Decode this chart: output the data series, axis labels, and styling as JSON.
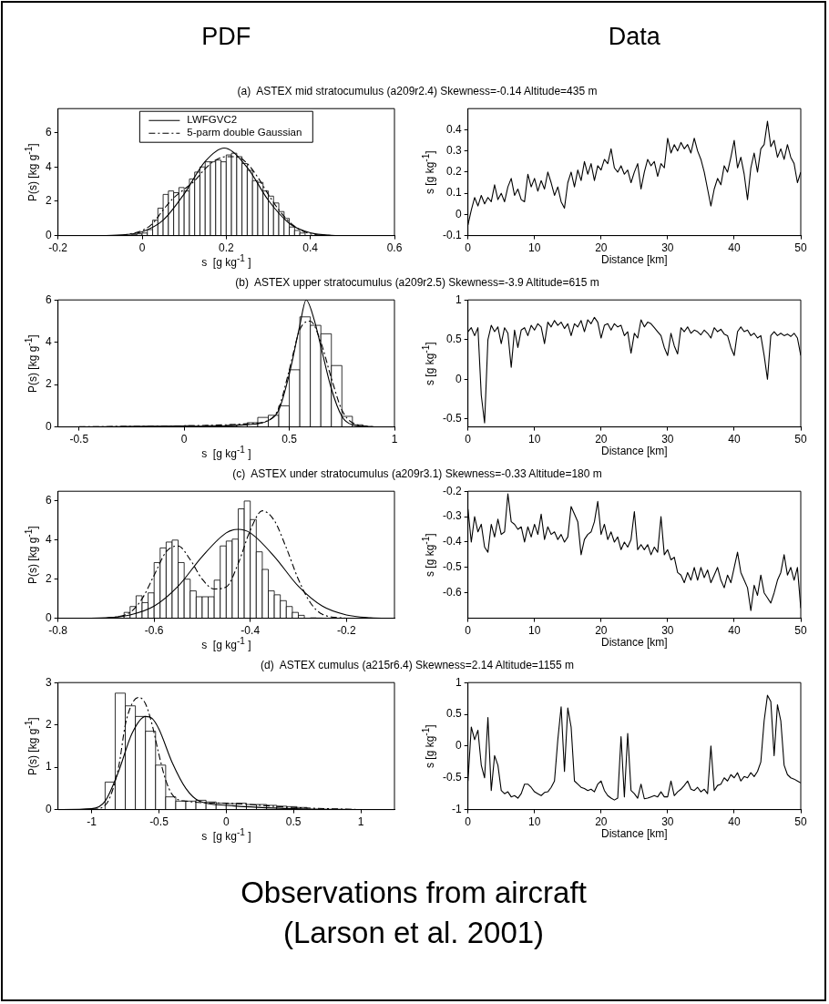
{
  "chart_data": [
    {
      "type": "histogram",
      "title": "PDF",
      "subtitle": "(a)  ASTEX mid stratocumulus (a209r2.4) Skewness=-0.14 Altitude=435 m",
      "xlabel": "s  [g kg$^{-1}$ ]",
      "ylabel": "P(s) [kg g$^{-1}$]",
      "color": "#ffffff",
      "bins": [
        -0.025,
        -0.0125,
        0,
        0.0125,
        0.025,
        0.0375,
        0.05,
        0.0625,
        0.075,
        0.0875,
        0.1,
        0.1125,
        0.125,
        0.1375,
        0.15,
        0.1625,
        0.175,
        0.1875,
        0.2,
        0.2125,
        0.225,
        0.2375,
        0.25,
        0.2625,
        0.275,
        0.2875,
        0.3,
        0.3125,
        0.325,
        0.3375,
        0.35,
        0.3625,
        0.375,
        0.3875
      ],
      "values": [
        0.05,
        0.1,
        0.15,
        0.35,
        0.9,
        1.6,
        2.4,
        2.6,
        2.5,
        2.8,
        2.6,
        3.3,
        3.7,
        4.0,
        4.3,
        4.3,
        4.4,
        4.3,
        4.7,
        4.8,
        4.6,
        4.2,
        3.8,
        3.2,
        3.1,
        2.6,
        2.3,
        1.9,
        1.4,
        1.0,
        0.5,
        0.3,
        0.15
      ],
      "series": [
        {
          "name": "LWFGVC2",
          "type": "line",
          "color": "#000000",
          "line_style": "solid",
          "x": [
            -0.2,
            -0.1,
            -0.05,
            0,
            0.05,
            0.1,
            0.15,
            0.195,
            0.25,
            0.3,
            0.35,
            0.4,
            0.45,
            0.5,
            0.6
          ],
          "values": [
            0,
            0,
            0.04,
            0.22,
            0.9,
            2.43,
            4.32,
            5.1,
            3.97,
            2.06,
            0.71,
            0.16,
            0.02,
            0,
            0
          ]
        },
        {
          "name": "5-parm double Gaussian",
          "type": "line",
          "color": "#000000",
          "line_style": "dashed",
          "x": [
            -0.05,
            0,
            0.025,
            0.05,
            0.075,
            0.1,
            0.125,
            0.15,
            0.175,
            0.2,
            0.225,
            0.25,
            0.275,
            0.3,
            0.325,
            0.35,
            0.375,
            0.4,
            0.45
          ],
          "values": [
            0,
            0.3,
            0.7,
            1.5,
            2.2,
            2.7,
            3.2,
            3.9,
            4.4,
            4.6,
            4.6,
            4.2,
            3.4,
            2.4,
            1.5,
            0.8,
            0.35,
            0.1,
            0
          ]
        }
      ],
      "xlim": [
        -0.2,
        0.6
      ],
      "xticks": [
        -0.2,
        0,
        0.2,
        0.4,
        0.6
      ],
      "ylim": [
        0,
        7.4
      ],
      "yticks": [
        0,
        2,
        4,
        6
      ],
      "legend": "top"
    },
    {
      "type": "line",
      "title": "Data",
      "xlabel": "Distance [km]",
      "ylabel": "s [g kg$^{-1}$]",
      "color": "#000000",
      "x": [
        0,
        0.5,
        1,
        1.5,
        2,
        2.5,
        3,
        3.5,
        4,
        4.5,
        5,
        5.5,
        6,
        6.5,
        7,
        7.5,
        8,
        8.5,
        9,
        9.5,
        10,
        10.5,
        11,
        11.5,
        12,
        12.5,
        13,
        13.5,
        14,
        14.5,
        15,
        15.5,
        16,
        16.5,
        17,
        17.5,
        18,
        18.5,
        19,
        19.5,
        20,
        20.5,
        21,
        21.5,
        22,
        22.5,
        23,
        23.5,
        24,
        24.5,
        25,
        25.5,
        26,
        26.5,
        27,
        27.5,
        28,
        28.5,
        29,
        29.5,
        30,
        30.5,
        31,
        31.5,
        32,
        32.5,
        33,
        33.5,
        34,
        34.5,
        35,
        35.5,
        36,
        36.5,
        37,
        37.5,
        38,
        38.5,
        39,
        39.5,
        40,
        40.5,
        41,
        41.5,
        42,
        42.5,
        43,
        43.5,
        44,
        44.5,
        45,
        45.5,
        46,
        46.5,
        47,
        47.5,
        48,
        48.5,
        49,
        49.5,
        50
      ],
      "values": [
        -0.05,
        0.02,
        0.08,
        0.04,
        0.09,
        0.05,
        0.08,
        0.06,
        0.14,
        0.07,
        0.1,
        0.06,
        0.13,
        0.17,
        0.09,
        0.12,
        0.07,
        0.06,
        0.19,
        0.13,
        0.17,
        0.11,
        0.16,
        0.12,
        0.2,
        0.15,
        0.09,
        0.13,
        0.06,
        0.03,
        0.15,
        0.2,
        0.13,
        0.21,
        0.16,
        0.25,
        0.19,
        0.24,
        0.16,
        0.23,
        0.21,
        0.26,
        0.24,
        0.31,
        0.22,
        0.2,
        0.23,
        0.19,
        0.21,
        0.15,
        0.2,
        0.24,
        0.12,
        0.2,
        0.26,
        0.23,
        0.25,
        0.18,
        0.24,
        0.22,
        0.36,
        0.29,
        0.33,
        0.3,
        0.34,
        0.31,
        0.33,
        0.29,
        0.36,
        0.3,
        0.26,
        0.2,
        0.12,
        0.04,
        0.12,
        0.17,
        0.14,
        0.23,
        0.2,
        0.27,
        0.35,
        0.22,
        0.27,
        0.19,
        0.07,
        0.22,
        0.29,
        0.2,
        0.31,
        0.33,
        0.44,
        0.32,
        0.35,
        0.27,
        0.31,
        0.26,
        0.33,
        0.27,
        0.24,
        0.15,
        0.2
      ],
      "xlim": [
        0,
        50
      ],
      "xticks": [
        0,
        10,
        20,
        30,
        40,
        50
      ],
      "ylim": [
        -0.1,
        0.5
      ],
      "yticks": [
        -0.1,
        0,
        0.1,
        0.2,
        0.3,
        0.4
      ]
    },
    {
      "type": "histogram",
      "subtitle": "(b)  ASTEX upper stratocumulus (a209r2.5) Skewness=-3.9 Altitude=615 m",
      "xlabel": "s  [g kg$^{-1}$ ]",
      "ylabel": "P(s) [kg g$^{-1}$]",
      "color": "#ffffff",
      "bins": [
        -0.3,
        -0.25,
        -0.2,
        -0.15,
        -0.1,
        -0.05,
        0,
        0.05,
        0.1,
        0.15,
        0.2,
        0.25,
        0.3,
        0.35,
        0.4,
        0.45,
        0.5,
        0.55,
        0.6,
        0.65,
        0.7,
        0.75,
        0.8,
        0.85,
        0.9
      ],
      "values": [
        0.02,
        0.02,
        0.03,
        0.03,
        0.04,
        0.05,
        0.06,
        null,
        0.06,
        0.05,
        0.08,
        0.1,
        0.2,
        0.45,
        0.55,
        1.0,
        2.7,
        5.2,
        4.8,
        4.4,
        2.9,
        0.5,
        0.1,
        0.02
      ],
      "series": [
        {
          "type": "line",
          "color": "#000000",
          "line_style": "solid",
          "x": [
            -0.5,
            0,
            0.2,
            0.3,
            0.4,
            0.45,
            0.5,
            0.55,
            0.58,
            0.62,
            0.65,
            0.7,
            0.75,
            0.8,
            0.9
          ],
          "values": [
            0,
            0.03,
            0.05,
            0.1,
            0.3,
            0.8,
            2.5,
            4.8,
            6.0,
            5.0,
            3.8,
            1.8,
            0.5,
            0.1,
            0
          ]
        },
        {
          "type": "line",
          "color": "#000000",
          "line_style": "dashed",
          "x": [
            -0.5,
            0,
            0.3,
            0.4,
            0.45,
            0.5,
            0.55,
            0.6,
            0.65,
            0.7,
            0.75,
            0.8,
            0.9
          ],
          "values": [
            0.01,
            0.05,
            0.15,
            0.3,
            0.9,
            2.7,
            4.6,
            5.0,
            4.0,
            2.3,
            0.8,
            0.2,
            0
          ]
        }
      ],
      "xlim": [
        -0.6,
        1
      ],
      "xticks": [
        -0.5,
        0,
        0.5,
        1
      ],
      "ylim": [
        0,
        6
      ],
      "yticks": [
        0,
        2,
        4,
        6
      ]
    },
    {
      "type": "line",
      "xlabel": "Distance [km]",
      "ylabel": "s [g kg$^{-1}$]",
      "color": "#000000",
      "x": [
        0,
        0.5,
        1,
        1.5,
        2,
        2.5,
        3,
        3.5,
        4,
        4.5,
        5,
        5.5,
        6,
        6.5,
        7,
        7.5,
        8,
        8.5,
        9,
        9.5,
        10,
        10.5,
        11,
        11.5,
        12,
        12.5,
        13,
        13.5,
        14,
        14.5,
        15,
        15.5,
        16,
        16.5,
        17,
        17.5,
        18,
        18.5,
        19,
        19.5,
        20,
        20.5,
        21,
        21.5,
        22,
        22.5,
        23,
        23.5,
        24,
        24.5,
        25,
        25.5,
        26,
        26.5,
        27,
        27.5,
        28,
        28.5,
        29,
        29.5,
        30,
        30.5,
        31,
        31.5,
        32,
        32.5,
        33,
        33.5,
        34,
        34.5,
        35,
        35.5,
        36,
        36.5,
        37,
        37.5,
        38,
        38.5,
        39,
        39.5,
        40,
        40.5,
        41,
        41.5,
        42,
        42.5,
        43,
        43.5,
        44,
        44.5,
        45,
        45.5,
        46,
        46.5,
        47,
        47.5,
        48,
        48.5,
        49,
        49.5,
        50
      ],
      "values": [
        0.6,
        0.65,
        0.55,
        0.65,
        -0.2,
        -0.55,
        0.5,
        0.68,
        0.6,
        0.66,
        0.45,
        0.65,
        0.58,
        0.15,
        0.62,
        0.4,
        0.62,
        0.65,
        0.55,
        0.68,
        0.62,
        0.7,
        0.66,
        0.45,
        0.72,
        0.66,
        0.74,
        0.68,
        0.72,
        0.64,
        0.7,
        0.55,
        0.7,
        0.66,
        0.74,
        0.6,
        0.75,
        0.7,
        0.78,
        0.72,
        0.52,
        0.68,
        0.7,
        0.62,
        0.7,
        0.66,
        0.68,
        0.55,
        0.6,
        0.33,
        0.58,
        0.52,
        0.75,
        0.66,
        0.72,
        0.7,
        0.65,
        0.6,
        0.55,
        0.4,
        0.3,
        0.58,
        0.42,
        0.32,
        0.65,
        0.6,
        0.66,
        0.58,
        0.62,
        0.6,
        0.56,
        0.62,
        0.58,
        0.52,
        0.65,
        0.6,
        0.63,
        0.57,
        0.55,
        0.4,
        0.3,
        0.6,
        0.66,
        0.6,
        0.62,
        0.55,
        0.58,
        0.52,
        0.55,
        0.3,
        0.0,
        0.55,
        0.6,
        0.55,
        0.58,
        0.55,
        0.57,
        0.54,
        0.58,
        0.52,
        0.3
      ],
      "xlim": [
        0,
        50
      ],
      "xticks": [
        0,
        10,
        20,
        30,
        40,
        50
      ],
      "ylim": [
        -0.6,
        1
      ],
      "yticks": [
        -0.5,
        0,
        0.5,
        1
      ]
    },
    {
      "type": "histogram",
      "subtitle": "(c)  ASTEX under stratocumulus (a209r3.1) Skewness=-0.33 Altitude=180 m",
      "xlabel": "s  [g kg$^{-1}$ ]",
      "ylabel": "P(s) [kg g$^{-1}$]",
      "color": "#ffffff",
      "bins": [
        -0.675,
        -0.6625,
        -0.65,
        -0.6375,
        -0.625,
        -0.6125,
        -0.6,
        -0.5875,
        -0.575,
        -0.5625,
        -0.55,
        -0.5375,
        -0.525,
        -0.5125,
        -0.5,
        -0.4875,
        -0.475,
        -0.4625,
        -0.45,
        -0.4375,
        -0.425,
        -0.4125,
        -0.4,
        -0.3875,
        -0.375,
        -0.3625,
        -0.35,
        -0.3375,
        -0.325,
        -0.3125,
        -0.3,
        -0.2875,
        -0.275,
        -0.2625,
        -0.25
      ],
      "values": [
        0.1,
        0.3,
        0.6,
        1.15,
        0.8,
        1.3,
        2.85,
        3.6,
        3.9,
        4.0,
        2.85,
        2.0,
        1.4,
        1.1,
        1.1,
        1.1,
        1.95,
        3.7,
        3.95,
        4.05,
        5.6,
        6.0,
        5.05,
        3.4,
        2.5,
        1.4,
        1.2,
        0.9,
        0.6,
        0.3,
        0.15,
        null,
        0.02,
        0.01
      ],
      "series": [
        {
          "type": "line",
          "color": "#000000",
          "line_style": "solid",
          "x": [
            -0.8,
            -0.7,
            -0.65,
            -0.6,
            -0.55,
            -0.5,
            -0.45,
            -0.425,
            -0.4,
            -0.35,
            -0.3,
            -0.25,
            -0.2,
            -0.15,
            -0.1
          ],
          "values": [
            0,
            0.03,
            0.17,
            0.62,
            1.64,
            3.16,
            4.37,
            4.55,
            4.37,
            3.16,
            1.64,
            0.62,
            0.17,
            0.03,
            0
          ]
        },
        {
          "type": "line",
          "color": "#000000",
          "line_style": "dashed",
          "x": [
            -0.7,
            -0.65,
            -0.625,
            -0.6,
            -0.575,
            -0.55,
            -0.525,
            -0.5,
            -0.475,
            -0.45,
            -0.425,
            -0.4,
            -0.375,
            -0.35,
            -0.325,
            -0.3,
            -0.275,
            -0.25,
            -0.2
          ],
          "values": [
            0,
            0.3,
            1.0,
            2.2,
            3.4,
            3.7,
            3.0,
            2.0,
            1.5,
            1.6,
            2.8,
            4.5,
            5.5,
            5.0,
            3.6,
            2.0,
            0.8,
            0.2,
            0
          ]
        }
      ],
      "xlim": [
        -0.8,
        -0.1
      ],
      "xticks": [
        -0.8,
        -0.6,
        -0.4,
        -0.2
      ],
      "ylim": [
        0,
        6.5
      ],
      "yticks": [
        0,
        2,
        4,
        6
      ]
    },
    {
      "type": "line",
      "xlabel": "Distance [km]",
      "ylabel": "s [g kg$^{-1}$]",
      "color": "#000000",
      "x": [
        0,
        0.5,
        1,
        1.5,
        2,
        2.5,
        3,
        3.5,
        4,
        4.5,
        5,
        5.5,
        6,
        6.5,
        7,
        7.5,
        8,
        8.5,
        9,
        9.5,
        10,
        10.5,
        11,
        11.5,
        12,
        12.5,
        13,
        13.5,
        14,
        14.5,
        15,
        15.5,
        16,
        16.5,
        17,
        17.5,
        18,
        18.5,
        19,
        19.5,
        20,
        20.5,
        21,
        21.5,
        22,
        22.5,
        23,
        23.5,
        24,
        24.5,
        25,
        25.5,
        26,
        26.5,
        27,
        27.5,
        28,
        28.5,
        29,
        29.5,
        30,
        30.5,
        31,
        31.5,
        32,
        32.5,
        33,
        33.5,
        34,
        34.5,
        35,
        35.5,
        36,
        36.5,
        37,
        37.5,
        38,
        38.5,
        39,
        39.5,
        40,
        40.5,
        41,
        41.5,
        42,
        42.5,
        43,
        43.5,
        44,
        44.5,
        45,
        45.5,
        46,
        46.5,
        47,
        47.5,
        48,
        48.5,
        49,
        49.5,
        50
      ],
      "values": [
        -0.27,
        -0.4,
        -0.3,
        -0.36,
        -0.33,
        -0.42,
        -0.44,
        -0.33,
        -0.38,
        -0.31,
        -0.37,
        -0.36,
        -0.21,
        -0.32,
        -0.33,
        -0.35,
        -0.34,
        -0.4,
        -0.34,
        -0.38,
        -0.33,
        -0.37,
        -0.29,
        -0.39,
        -0.34,
        -0.37,
        -0.36,
        -0.39,
        -0.37,
        -0.4,
        -0.38,
        -0.26,
        -0.29,
        -0.32,
        -0.45,
        -0.39,
        -0.37,
        -0.36,
        -0.32,
        -0.24,
        -0.37,
        -0.33,
        -0.39,
        -0.36,
        -0.4,
        -0.38,
        -0.43,
        -0.4,
        -0.42,
        -0.39,
        -0.28,
        -0.43,
        -0.41,
        -0.43,
        -0.41,
        -0.45,
        -0.42,
        -0.44,
        -0.3,
        -0.45,
        -0.43,
        -0.47,
        -0.46,
        -0.52,
        -0.53,
        -0.56,
        -0.52,
        -0.55,
        -0.5,
        -0.55,
        -0.5,
        -0.54,
        -0.51,
        -0.56,
        -0.53,
        -0.5,
        -0.55,
        -0.58,
        -0.53,
        -0.56,
        -0.5,
        -0.44,
        -0.52,
        -0.55,
        -0.58,
        -0.67,
        -0.57,
        -0.61,
        -0.53,
        -0.6,
        -0.62,
        -0.64,
        -0.6,
        -0.55,
        -0.52,
        -0.45,
        -0.53,
        -0.5,
        -0.55,
        -0.5,
        -0.66
      ],
      "xlim": [
        0,
        50
      ],
      "xticks": [
        0,
        10,
        20,
        30,
        40,
        50
      ],
      "ylim": [
        -0.7,
        -0.2
      ],
      "yticks": [
        -0.6,
        -0.5,
        -0.4,
        -0.3,
        -0.2
      ]
    },
    {
      "type": "histogram",
      "subtitle": "(d)  ASTEX cumulus (a215r6.4) Skewness=2.14 Altitude=1155 m",
      "xlabel": "s  [g kg$^{-1}$ ]",
      "ylabel": "P(s) [kg g$^{-1}$]",
      "color": "#ffffff",
      "bins": [
        -0.9,
        -0.825,
        -0.75,
        -0.675,
        -0.6,
        -0.525,
        -0.45,
        -0.375,
        -0.3,
        -0.225,
        -0.15,
        -0.075,
        0,
        0.075,
        0.15,
        0.225,
        0.3,
        0.375,
        0.45,
        0.525,
        0.6
      ],
      "values": [
        0.65,
        2.75,
        2.45,
        2.2,
        1.85,
        1.05,
        0.3,
        0.2,
        0.2,
        0.22,
        0.18,
        0.15,
        0.14,
        0.15,
        0.12,
        0.12,
        0.1,
        0.08,
        0.07,
        0.05
      ],
      "series": [
        {
          "type": "line",
          "color": "#000000",
          "line_style": "solid",
          "x": [
            -1.25,
            -1,
            -0.9,
            -0.8,
            -0.7,
            -0.6,
            -0.55,
            -0.5,
            -0.4,
            -0.3,
            -0.2,
            0,
            0.5,
            1
          ],
          "values": [
            0,
            0.02,
            0.2,
            0.9,
            1.8,
            2.2,
            2.15,
            1.9,
            1.1,
            0.5,
            0.2,
            0.1,
            0.02,
            0
          ]
        },
        {
          "type": "line",
          "color": "#000000",
          "line_style": "dashed",
          "x": [
            -1,
            -0.9,
            -0.8,
            -0.75,
            -0.7,
            -0.65,
            -0.6,
            -0.55,
            -0.5,
            -0.45,
            -0.4,
            -0.3,
            0,
            0.5,
            1
          ],
          "values": [
            0,
            0.1,
            1.0,
            2.0,
            2.5,
            2.65,
            2.5,
            2.0,
            1.3,
            0.7,
            0.35,
            0.2,
            0.15,
            0.05,
            0
          ]
        }
      ],
      "xlim": [
        -1.25,
        1.25
      ],
      "xticks": [
        -1,
        -0.5,
        0,
        0.5,
        1
      ],
      "ylim": [
        0,
        3
      ],
      "yticks": [
        0,
        1,
        2,
        3
      ]
    },
    {
      "type": "line",
      "xlabel": "Distance [km]",
      "ylabel": "s [g kg$^{-1}$]",
      "color": "#000000",
      "x": [
        0,
        0.5,
        1,
        1.5,
        2,
        2.5,
        3,
        3.5,
        4,
        4.5,
        5,
        5.5,
        6,
        6.5,
        7,
        7.5,
        8,
        8.5,
        9,
        9.5,
        10,
        10.5,
        11,
        11.5,
        12,
        12.5,
        13,
        13.5,
        14,
        14.5,
        15,
        15.5,
        16,
        16.5,
        17,
        17.5,
        18,
        18.5,
        19,
        19.5,
        20,
        20.5,
        21,
        21.5,
        22,
        22.5,
        23,
        23.5,
        24,
        24.5,
        25,
        25.5,
        26,
        26.5,
        27,
        27.5,
        28,
        28.5,
        29,
        29.5,
        30,
        30.5,
        31,
        31.5,
        32,
        32.5,
        33,
        33.5,
        34,
        34.5,
        35,
        35.5,
        36,
        36.5,
        37,
        37.5,
        38,
        38.5,
        39,
        39.5,
        40,
        40.5,
        41,
        41.5,
        42,
        42.5,
        43,
        43.5,
        44,
        44.5,
        45,
        45.5,
        46,
        46.5,
        47,
        47.5,
        48,
        48.5,
        49,
        49.5,
        50
      ],
      "values": [
        -0.55,
        0.3,
        0.1,
        0.25,
        -0.3,
        -0.5,
        0.45,
        -0.7,
        -0.15,
        -0.3,
        -0.7,
        -0.75,
        -0.72,
        -0.8,
        -0.78,
        -0.82,
        -0.75,
        -0.6,
        -0.6,
        -0.65,
        -0.72,
        -0.75,
        -0.78,
        -0.73,
        -0.72,
        -0.65,
        -0.55,
        0.1,
        0.62,
        -0.4,
        0.6,
        0.3,
        -0.55,
        -0.6,
        -0.65,
        -0.67,
        -0.7,
        -0.68,
        -0.72,
        -0.6,
        -0.55,
        -0.7,
        -0.78,
        -0.82,
        -0.85,
        -0.82,
        0.15,
        -0.8,
        0.2,
        -0.7,
        -0.75,
        -0.82,
        -0.6,
        -0.83,
        -0.82,
        -0.8,
        -0.78,
        -0.8,
        -0.72,
        -0.8,
        -0.8,
        -0.55,
        -0.78,
        -0.72,
        -0.68,
        -0.62,
        -0.55,
        -0.68,
        -0.7,
        -0.65,
        -0.72,
        -0.68,
        -0.75,
        0.0,
        -0.7,
        -0.62,
        -0.6,
        -0.5,
        -0.55,
        -0.45,
        -0.5,
        -0.42,
        -0.55,
        -0.48,
        -0.5,
        -0.42,
        -0.48,
        -0.4,
        -0.25,
        0.4,
        0.8,
        0.7,
        -0.15,
        0.65,
        0.4,
        -0.3,
        -0.45,
        -0.5,
        -0.52,
        -0.55,
        -0.58
      ],
      "xlim": [
        0,
        50
      ],
      "xticks": [
        0,
        10,
        20,
        30,
        40,
        50
      ],
      "ylim": [
        -1,
        1
      ],
      "yticks": [
        -1,
        -0.5,
        0,
        0.5,
        1
      ]
    },
    {
      "type": "other",
      "annotations": [
        "Observations from aircraft",
        "(Larson et al. 2001)"
      ]
    }
  ]
}
